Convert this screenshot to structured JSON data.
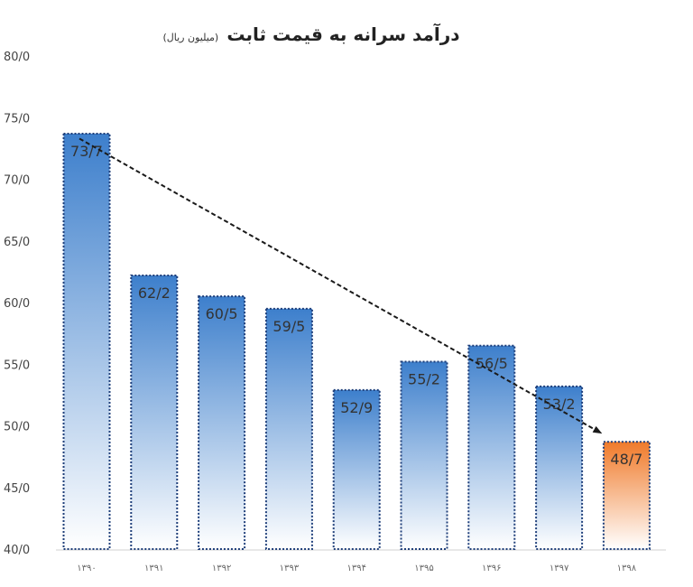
{
  "chart_data": {
    "type": "bar",
    "title": "درآمد سرانه به قیمت ثابت",
    "subtitle": "(میلیون ریال)",
    "categories": [
      "۱۳۹۰",
      "۱۳۹۱",
      "۱۳۹۲",
      "۱۳۹۳",
      "۱۳۹۴",
      "۱۳۹۵",
      "۱۳۹۶",
      "۱۳۹۷",
      "۱۳۹۸"
    ],
    "values": [
      73.7,
      62.2,
      60.5,
      59.5,
      52.9,
      55.2,
      56.5,
      53.2,
      48.7
    ],
    "data_labels": [
      "73/7",
      "62/2",
      "60/5",
      "59/5",
      "52/9",
      "55/2",
      "56/5",
      "53/2",
      "48/7"
    ],
    "ylim": [
      40,
      80
    ],
    "yticks": [
      40,
      45,
      50,
      55,
      60,
      65,
      70,
      75,
      80
    ],
    "ytick_labels": [
      "40/0",
      "45/0",
      "50/0",
      "55/0",
      "60/0",
      "65/0",
      "70/0",
      "75/0",
      "80/0"
    ],
    "xlabel": "",
    "ylabel": "",
    "grid": false,
    "legend": "none",
    "trend_arrow": {
      "from_value": 73.3,
      "to_value": 49.4,
      "from_index": 0,
      "to_index": 8
    },
    "colors": {
      "bar_top": "#3d7fcc",
      "bar_bottom": "#ffffff",
      "highlight_top": "#f07a2a",
      "highlight_bottom": "#ffffff",
      "bar_border": "#1f3f7a",
      "arrow": "#1a1a1a"
    },
    "highlight_index": 8
  }
}
